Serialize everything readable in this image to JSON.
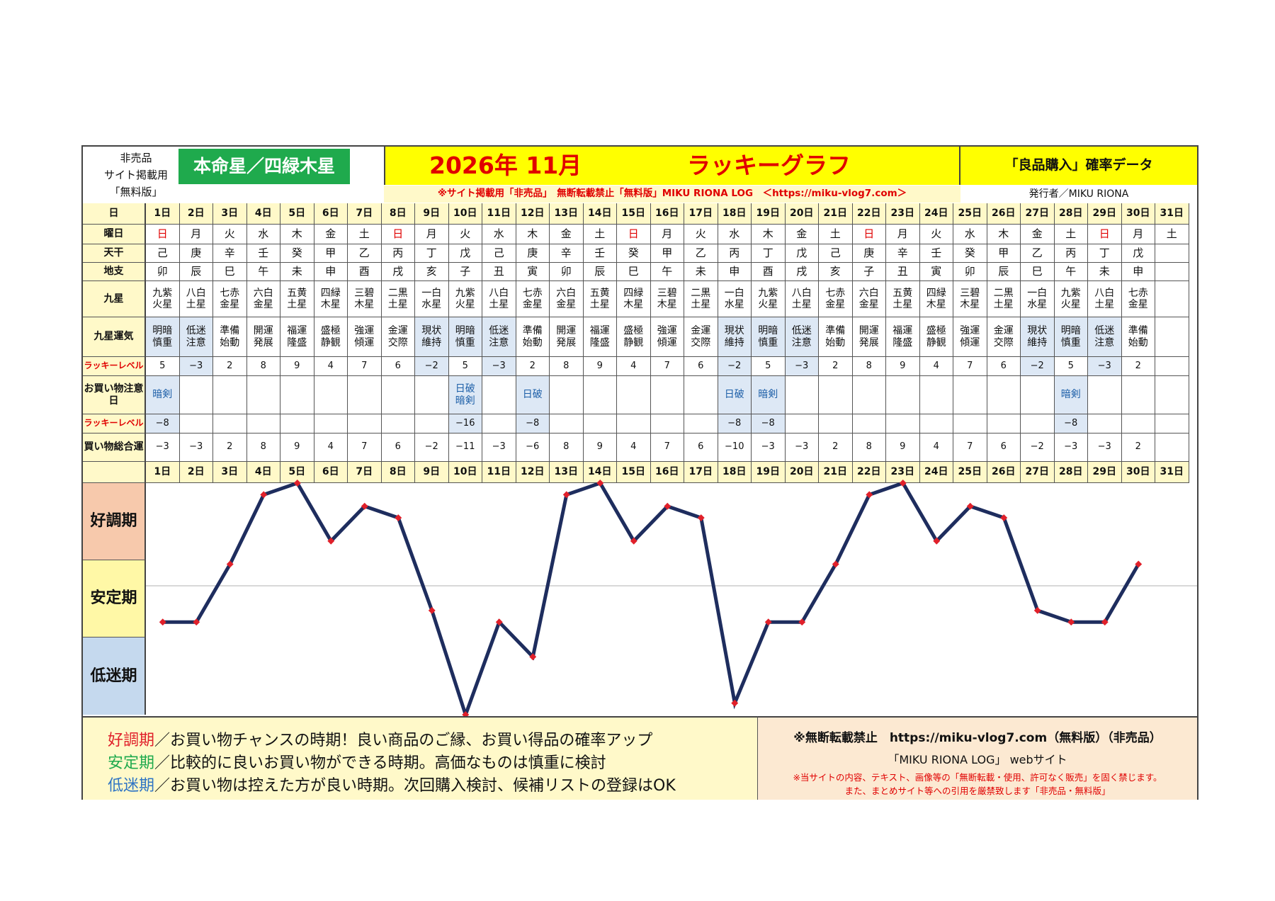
{
  "header": {
    "nonsale_lines": [
      "非売品",
      "サイト掲載用",
      "「無料版」"
    ],
    "honmei_label": "本命星／四緑木星",
    "title_year_month": "2026年 11月",
    "title_graph": "ラッキーグラフ",
    "subtitle": "「良品購入」確率データ",
    "notice": "※サイト掲載用「非売品」　無断転載禁止「無料版」MIKU RIONA LOG　＜https://miku-vlog7.com＞",
    "publisher": "発行者／MIKU RIONA"
  },
  "row_labels": {
    "day": "日",
    "weekday": "曜日",
    "tenkan": "天干",
    "chishi": "地支",
    "kyusei": "九星",
    "kyusei_unki": "九星運気",
    "lucky_level": "ラッキーレベル",
    "caution": "お買い物注意日",
    "lucky_level2": "ラッキーレベル",
    "total": "買い物総合運"
  },
  "days": [
    "1日",
    "2日",
    "3日",
    "4日",
    "5日",
    "6日",
    "7日",
    "8日",
    "9日",
    "10日",
    "11日",
    "12日",
    "13日",
    "14日",
    "15日",
    "16日",
    "17日",
    "18日",
    "19日",
    "20日",
    "21日",
    "22日",
    "23日",
    "24日",
    "25日",
    "26日",
    "27日",
    "28日",
    "29日",
    "30日",
    "31日"
  ],
  "weekdays": [
    "日",
    "月",
    "火",
    "水",
    "木",
    "金",
    "土",
    "日",
    "月",
    "火",
    "水",
    "木",
    "金",
    "土",
    "日",
    "月",
    "火",
    "水",
    "木",
    "金",
    "土",
    "日",
    "月",
    "火",
    "水",
    "木",
    "金",
    "土",
    "日",
    "月",
    "土"
  ],
  "tenkan": [
    "己",
    "庚",
    "辛",
    "壬",
    "癸",
    "甲",
    "乙",
    "丙",
    "丁",
    "戊",
    "己",
    "庚",
    "辛",
    "壬",
    "癸",
    "甲",
    "乙",
    "丙",
    "丁",
    "戊",
    "己",
    "庚",
    "辛",
    "壬",
    "癸",
    "甲",
    "乙",
    "丙",
    "丁",
    "戊",
    ""
  ],
  "chishi": [
    "卯",
    "辰",
    "巳",
    "午",
    "未",
    "申",
    "酉",
    "戌",
    "亥",
    "子",
    "丑",
    "寅",
    "卯",
    "辰",
    "巳",
    "午",
    "未",
    "申",
    "酉",
    "戌",
    "亥",
    "子",
    "丑",
    "寅",
    "卯",
    "辰",
    "巳",
    "午",
    "未",
    "申",
    ""
  ],
  "kyusei": [
    "九紫\n火星",
    "八白\n土星",
    "七赤\n金星",
    "六白\n金星",
    "五黄\n土星",
    "四緑\n木星",
    "三碧\n木星",
    "二黒\n土星",
    "一白\n水星",
    "九紫\n火星",
    "八白\n土星",
    "七赤\n金星",
    "六白\n金星",
    "五黄\n土星",
    "四緑\n木星",
    "三碧\n木星",
    "二黒\n土星",
    "一白\n水星",
    "九紫\n火星",
    "八白\n土星",
    "七赤\n金星",
    "六白\n金星",
    "五黄\n土星",
    "四緑\n木星",
    "三碧\n木星",
    "二黒\n土星",
    "一白\n水星",
    "九紫\n火星",
    "八白\n土星",
    "七赤\n金星",
    ""
  ],
  "unki": [
    "明暗\n慎重",
    "低迷\n注意",
    "準備\n始動",
    "開運\n発展",
    "福運\n隆盛",
    "盛極\n静観",
    "強運\n傾運",
    "金運\n交際",
    "現状\n維持",
    "明暗\n慎重",
    "低迷\n注意",
    "準備\n始動",
    "開運\n発展",
    "福運\n隆盛",
    "盛極\n静観",
    "強運\n傾運",
    "金運\n交際",
    "現状\n維持",
    "明暗\n慎重",
    "低迷\n注意",
    "準備\n始動",
    "開運\n発展",
    "福運\n隆盛",
    "盛極\n静観",
    "強運\n傾運",
    "金運\n交際",
    "現状\n維持",
    "明暗\n慎重",
    "低迷\n注意",
    "準備\n始動",
    ""
  ],
  "lucky_level": [
    "5",
    "−3",
    "2",
    "8",
    "9",
    "4",
    "7",
    "6",
    "−2",
    "5",
    "−3",
    "2",
    "8",
    "9",
    "4",
    "7",
    "6",
    "−2",
    "5",
    "−3",
    "2",
    "8",
    "9",
    "4",
    "7",
    "6",
    "−2",
    "5",
    "−3",
    "2",
    ""
  ],
  "caution": [
    "暗剣",
    "",
    "",
    "",
    "",
    "",
    "",
    "",
    "",
    "日破\n暗剣",
    "",
    "日破",
    "",
    "",
    "",
    "",
    "",
    "日破",
    "暗剣",
    "",
    "",
    "",
    "",
    "",
    "",
    "",
    "",
    "暗剣",
    "",
    "",
    ""
  ],
  "lucky_level2": [
    "−8",
    "",
    "",
    "",
    "",
    "",
    "",
    "",
    "",
    "−16",
    "",
    "−8",
    "",
    "",
    "",
    "",
    "",
    "−8",
    "−8",
    "",
    "",
    "",
    "",
    "",
    "",
    "",
    "",
    "−8",
    "",
    "",
    ""
  ],
  "total": [
    "−3",
    "−3",
    "2",
    "8",
    "9",
    "4",
    "7",
    "6",
    "−2",
    "−11",
    "−3",
    "−6",
    "8",
    "9",
    "4",
    "7",
    "6",
    "−10",
    "−3",
    "−3",
    "2",
    "8",
    "9",
    "4",
    "7",
    "6",
    "−2",
    "−3",
    "−3",
    "2",
    ""
  ],
  "bands": {
    "good": "好調期",
    "stable": "安定期",
    "low": "低迷期"
  },
  "chart_data": {
    "type": "line",
    "categories": [
      "1日",
      "2日",
      "3日",
      "4日",
      "5日",
      "6日",
      "7日",
      "8日",
      "9日",
      "10日",
      "11日",
      "12日",
      "13日",
      "14日",
      "15日",
      "16日",
      "17日",
      "18日",
      "19日",
      "20日",
      "21日",
      "22日",
      "23日",
      "24日",
      "25日",
      "26日",
      "27日",
      "28日",
      "29日",
      "30日"
    ],
    "values": [
      -3,
      -3,
      2,
      8,
      9,
      4,
      7,
      6,
      -2,
      -11,
      -3,
      -6,
      8,
      9,
      4,
      7,
      6,
      -10,
      -3,
      -3,
      2,
      8,
      9,
      4,
      7,
      6,
      -2,
      -3,
      -3,
      2
    ],
    "ylim": [
      -11,
      9
    ],
    "line_color": "#1e2d5e",
    "marker_color": "#e0202a"
  },
  "legend": {
    "line1_term": "好調期",
    "line1_text": "／お買い物チャンスの時期！良い商品のご縁、お買い得品の確率アップ",
    "line2_term": "安定期",
    "line2_text": "／比較的に良いお買い物ができる時期。高価なものは慎重に検討",
    "line3_term": "低迷期",
    "line3_text": "／お買い物は控えた方が良い時期。次回購入検討、候補リストの登録はOK"
  },
  "footer": {
    "line1": "※無断転載禁止　https://miku-vlog7.com（無料版）（非売品）",
    "line2": "「MIKU RIONA LOG」 webサイト",
    "line3": "※当サイトの内容、テキスト、画像等の「無断転載・使用、許可なく販売」を固く禁じます。",
    "line4": "また、まとめサイト等への引用を厳禁致します「非売品・無料版」"
  },
  "colors": {
    "yellow": "#ffff00",
    "cream": "#fffacd",
    "green": "#1faa4d",
    "blue_cell": "#dde8f5",
    "red": "#e00000",
    "good_band": "#f7c9ac",
    "stable_band": "#fff8a6",
    "low_band": "#c5d9ee",
    "legend_bg": "#fff9c9",
    "footer_bg": "#fce9d2"
  }
}
